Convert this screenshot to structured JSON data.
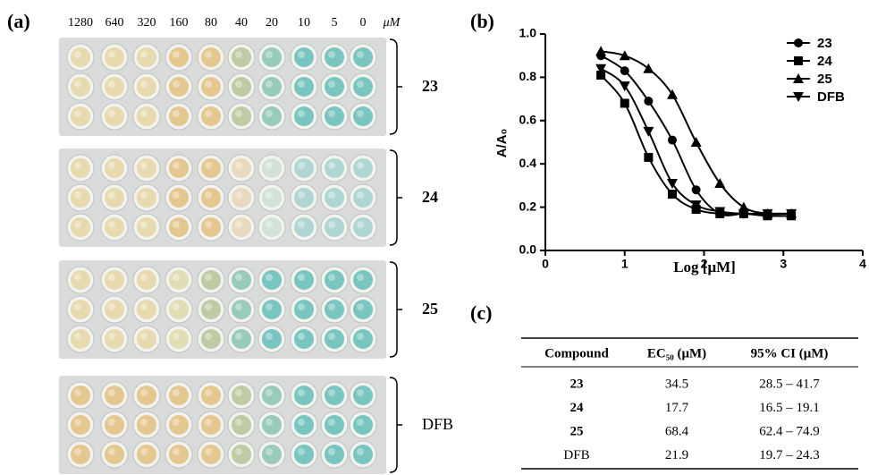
{
  "panel_a": {
    "label": "(a)",
    "concentrations": [
      "1280",
      "640",
      "320",
      "160",
      "80",
      "40",
      "20",
      "10",
      "5",
      "0"
    ],
    "unit": "μM",
    "plates": [
      {
        "label": "23"
      },
      {
        "label": "24"
      },
      {
        "label": "25"
      },
      {
        "label": "DFB"
      }
    ]
  },
  "panel_b": {
    "label": "(b)"
  },
  "chart_data": {
    "type": "line",
    "x_label": "Log [μM]",
    "y_label": "A/A₀",
    "x": [
      0.7,
      1.0,
      1.3,
      1.6,
      1.9,
      2.2,
      2.5,
      2.8,
      3.1
    ],
    "series": [
      {
        "name": "23",
        "color": "#000000",
        "marker": "circle",
        "values": [
          0.9,
          0.83,
          0.69,
          0.51,
          0.28,
          0.17,
          0.17,
          0.17,
          0.17
        ]
      },
      {
        "name": "24",
        "color": "#000000",
        "marker": "square",
        "values": [
          0.81,
          0.68,
          0.43,
          0.26,
          0.19,
          0.17,
          0.17,
          0.16,
          0.16
        ]
      },
      {
        "name": "25",
        "color": "#000000",
        "marker": "triangle",
        "values": [
          0.92,
          0.9,
          0.84,
          0.72,
          0.5,
          0.31,
          0.2,
          0.17,
          0.17
        ]
      },
      {
        "name": "DFB",
        "color": "#000000",
        "marker": "triangle-down",
        "values": [
          0.84,
          0.76,
          0.55,
          0.31,
          0.21,
          0.18,
          0.17,
          0.17,
          0.17
        ]
      }
    ],
    "xlim": [
      0,
      4
    ],
    "xticks": [
      0,
      1,
      2,
      3,
      4
    ],
    "ylim": [
      0,
      1
    ],
    "yticks": [
      {
        "value": 0,
        "label": "0.0"
      },
      0.2,
      0.4,
      0.6,
      0.8,
      {
        "value": 1,
        "label": "1.0"
      }
    ],
    "legend": "upper right",
    "grid": false
  },
  "panel_c": {
    "label": "(c)",
    "table": {
      "header": [
        "Compound",
        "EC₅₀ (μM)",
        "95% CI (μM)"
      ],
      "rows": [
        [
          "23",
          "34.5",
          "28.5 – 41.7"
        ],
        [
          "24",
          "17.7",
          "16.5 – 19.1"
        ],
        [
          "25",
          "68.4",
          "62.4 – 74.9"
        ],
        [
          "DFB",
          "21.9",
          "19.7 – 24.3"
        ]
      ]
    }
  }
}
